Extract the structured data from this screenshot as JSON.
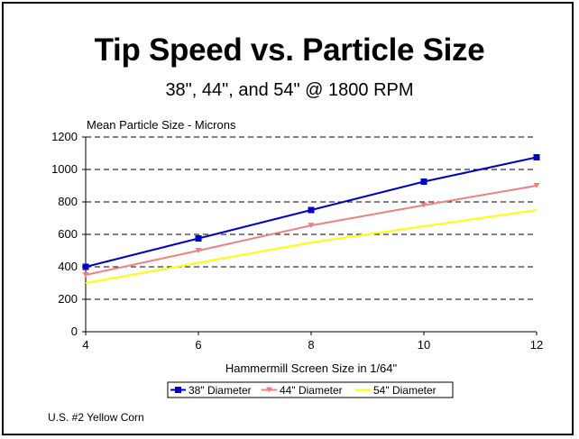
{
  "page": {
    "title": "Tip Speed vs. Particle Size",
    "subtitle": "38\", 44\", and 54\" @ 1800 RPM",
    "footnote": "U.S. #2 Yellow Corn"
  },
  "chart_data": {
    "type": "line",
    "title": "",
    "ylabel": "Mean Particle Size - Microns",
    "xlabel": "Hammermill Screen Size in 1/64\"",
    "x": [
      4,
      6,
      8,
      10,
      12
    ],
    "xticks": [
      "4",
      "6",
      "8",
      "10",
      "12"
    ],
    "yticks": [
      "0",
      "200",
      "400",
      "600",
      "800",
      "1000",
      "1200"
    ],
    "xlim": [
      4,
      12
    ],
    "ylim": [
      0,
      1200
    ],
    "grid": "horizontal dashed",
    "legend_position": "bottom",
    "series": [
      {
        "name": "38\" Diameter",
        "values": [
          400,
          575,
          750,
          925,
          1075
        ],
        "color": "#0000cc",
        "marker": "square"
      },
      {
        "name": "44\" Diameter",
        "values": [
          350,
          500,
          655,
          780,
          900
        ],
        "color": "#f08080",
        "marker": "triangle"
      },
      {
        "name": "54\" Diameter",
        "values": [
          300,
          425,
          550,
          650,
          750
        ],
        "color": "#ffff00",
        "marker": "none"
      }
    ]
  }
}
